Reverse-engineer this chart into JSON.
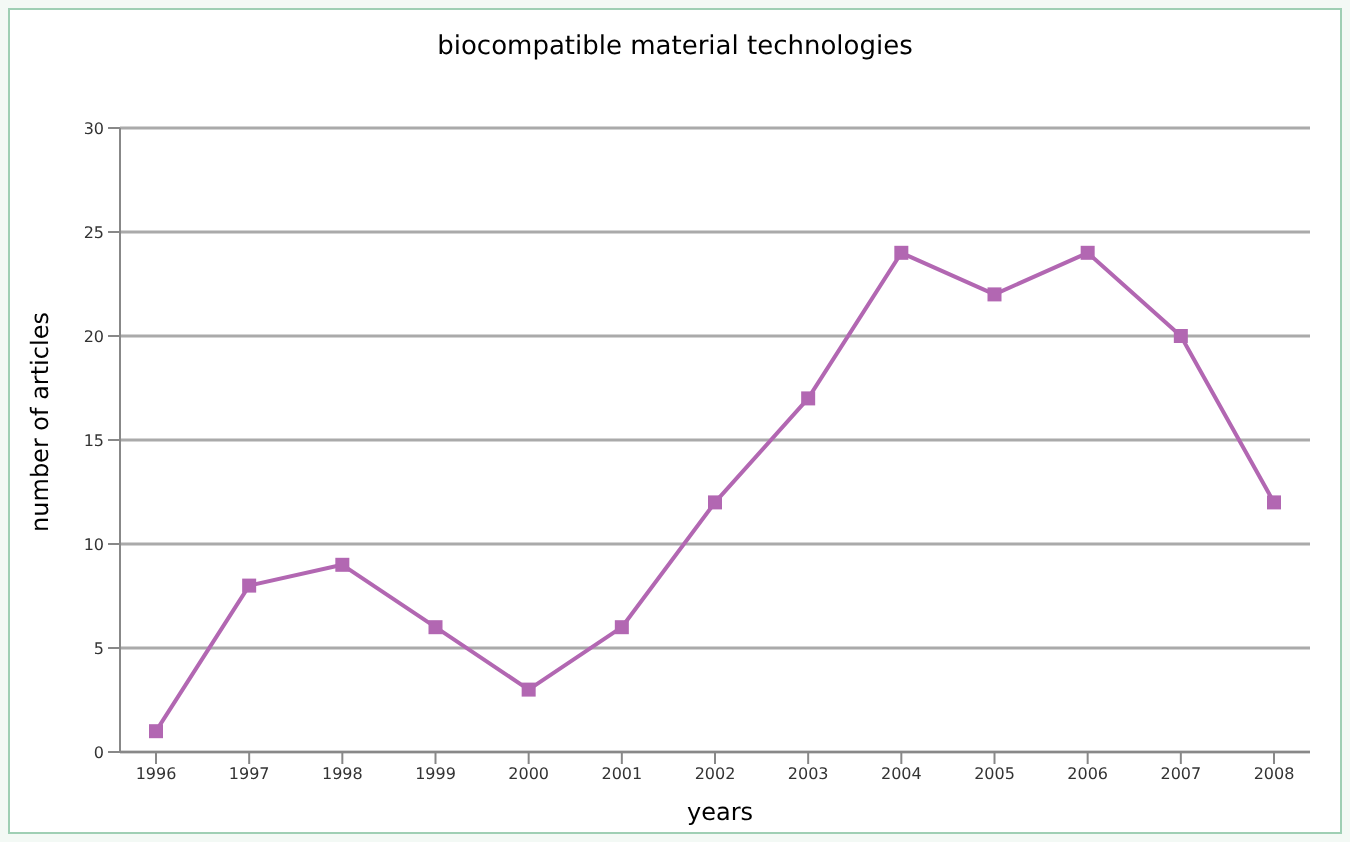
{
  "chart_data": {
    "type": "line",
    "title": "biocompatible material technologies",
    "xlabel": "years",
    "ylabel": "number of articles",
    "categories": [
      "1996",
      "1997",
      "1998",
      "1999",
      "2000",
      "2001",
      "2002",
      "2003",
      "2004",
      "2005",
      "2006",
      "2007",
      "2008"
    ],
    "series": [
      {
        "color": "#b267b2",
        "values": [
          1,
          8,
          9,
          6,
          3,
          6,
          12,
          17,
          24,
          22,
          24,
          20,
          12
        ]
      }
    ],
    "ylim": [
      0,
      30
    ],
    "yticks": [
      0,
      5,
      10,
      15,
      20,
      25,
      30
    ],
    "grid": "y",
    "marker": "square",
    "line_style": "solid",
    "legend": false
  }
}
